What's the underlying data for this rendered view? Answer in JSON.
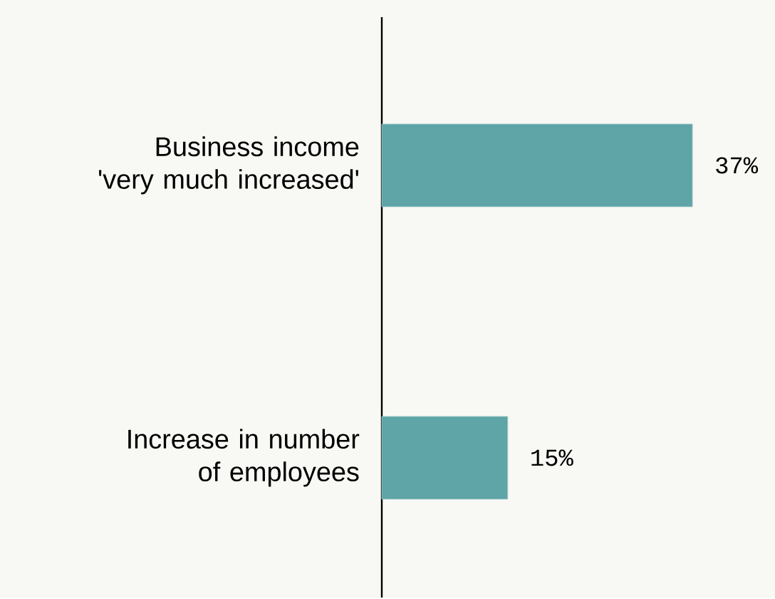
{
  "chart_data": {
    "type": "bar",
    "orientation": "horizontal",
    "categories": [
      "Business income 'very much increased'",
      "Increase in number of employees"
    ],
    "values": [
      37,
      15
    ],
    "color": "#5fa5a8",
    "value_labels": [
      "37%",
      "15%"
    ]
  }
}
